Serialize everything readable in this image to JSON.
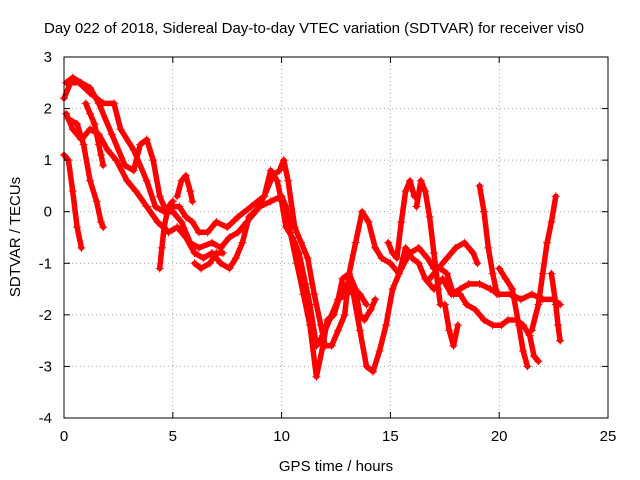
{
  "chart_data": {
    "type": "scatter",
    "title": "Day 022 of 2018, Sidereal Day-to-day VTEC variation (SDTVAR) for receiver vis0",
    "xlabel": "GPS time / hours",
    "ylabel": "SDTVAR / TECUs",
    "xlim": [
      0,
      25
    ],
    "ylim": [
      -4,
      3
    ],
    "xticks": [
      "0",
      "5",
      "10",
      "15",
      "20",
      "25"
    ],
    "yticks": [
      "3",
      "2",
      "1",
      "0",
      "-1",
      "-2",
      "-3",
      "-4"
    ],
    "grid": true,
    "marker": "+",
    "color": "#ff0000",
    "series": [
      {
        "name": "arc-1",
        "points": [
          [
            0.0,
            2.2
          ],
          [
            0.3,
            2.5
          ],
          [
            0.7,
            2.5
          ],
          [
            1.2,
            2.3
          ],
          [
            1.8,
            2.1
          ],
          [
            2.3,
            2.1
          ],
          [
            2.6,
            1.6
          ],
          [
            3.2,
            1.2
          ],
          [
            3.8,
            0.6
          ],
          [
            4.2,
            0.1
          ],
          [
            4.6,
            0.0
          ],
          [
            5.0,
            0.0
          ],
          [
            5.4,
            -0.2
          ],
          [
            5.8,
            -0.6
          ],
          [
            6.2,
            -0.7
          ],
          [
            6.8,
            -0.6
          ],
          [
            7.2,
            -0.7
          ],
          [
            7.6,
            -0.5
          ],
          [
            8.0,
            -0.4
          ],
          [
            8.4,
            -0.2
          ],
          [
            8.8,
            0.0
          ],
          [
            9.2,
            0.3
          ],
          [
            9.5,
            0.8
          ],
          [
            9.8,
            0.6
          ],
          [
            10.0,
            0.2
          ],
          [
            10.2,
            -0.3
          ],
          [
            10.5,
            -0.5
          ],
          [
            10.8,
            -0.8
          ],
          [
            11.1,
            -1.4
          ],
          [
            11.3,
            -1.8
          ],
          [
            11.6,
            -2.6
          ],
          [
            11.9,
            -2.4
          ],
          [
            12.2,
            -2.1
          ],
          [
            12.6,
            -1.7
          ],
          [
            13.0,
            -1.6
          ],
          [
            13.3,
            -1.5
          ],
          [
            13.6,
            -1.6
          ],
          [
            13.9,
            -1.8
          ]
        ]
      },
      {
        "name": "arc-2",
        "points": [
          [
            0.1,
            2.5
          ],
          [
            0.4,
            2.6
          ],
          [
            0.8,
            2.5
          ],
          [
            1.2,
            2.4
          ],
          [
            1.6,
            2.1
          ],
          [
            2.2,
            1.5
          ],
          [
            2.8,
            0.9
          ],
          [
            3.2,
            0.8
          ],
          [
            3.5,
            1.3
          ],
          [
            3.8,
            1.4
          ],
          [
            4.1,
            1.0
          ],
          [
            4.4,
            0.3
          ],
          [
            4.7,
            0.0
          ],
          [
            5.0,
            0.1
          ],
          [
            5.3,
            0.1
          ],
          [
            5.6,
            -0.1
          ],
          [
            5.9,
            -0.2
          ],
          [
            6.2,
            -0.4
          ],
          [
            6.6,
            -0.4
          ],
          [
            7.0,
            -0.2
          ],
          [
            7.5,
            -0.3
          ],
          [
            8.0,
            -0.1
          ],
          [
            8.6,
            0.1
          ],
          [
            9.2,
            0.3
          ],
          [
            9.6,
            0.7
          ],
          [
            9.9,
            0.8
          ],
          [
            10.1,
            1.0
          ],
          [
            10.3,
            0.6
          ],
          [
            10.6,
            -0.3
          ],
          [
            10.9,
            -0.6
          ],
          [
            11.2,
            -0.9
          ],
          [
            11.5,
            -1.6
          ],
          [
            11.8,
            -2.2
          ],
          [
            12.0,
            -2.6
          ],
          [
            12.3,
            -2.6
          ],
          [
            12.6,
            -2.3
          ],
          [
            12.9,
            -2.0
          ],
          [
            13.1,
            -1.2
          ],
          [
            13.4,
            -0.6
          ],
          [
            13.7,
            0.0
          ],
          [
            14.0,
            -0.2
          ],
          [
            14.3,
            -0.7
          ],
          [
            14.6,
            -0.9
          ],
          [
            15.0,
            -1.0
          ],
          [
            15.4,
            -1.2
          ],
          [
            15.7,
            -0.7
          ],
          [
            16.0,
            -0.9
          ],
          [
            16.3,
            -1.0
          ],
          [
            16.6,
            -1.3
          ],
          [
            17.0,
            -1.5
          ],
          [
            17.4,
            -1.3
          ],
          [
            17.8,
            -1.6
          ],
          [
            18.2,
            -1.5
          ],
          [
            18.6,
            -1.4
          ],
          [
            19.1,
            -1.4
          ],
          [
            19.6,
            -1.5
          ],
          [
            20.0,
            -1.6
          ],
          [
            20.5,
            -1.6
          ],
          [
            21.0,
            -1.7
          ],
          [
            21.5,
            -1.6
          ],
          [
            22.0,
            -1.7
          ],
          [
            22.5,
            -1.7
          ],
          [
            22.8,
            -1.8
          ]
        ]
      },
      {
        "name": "arc-3",
        "points": [
          [
            0.1,
            1.9
          ],
          [
            0.4,
            1.6
          ],
          [
            0.8,
            1.4
          ],
          [
            1.2,
            1.6
          ],
          [
            1.6,
            1.5
          ],
          [
            2.0,
            1.2
          ],
          [
            2.4,
            1.0
          ],
          [
            2.9,
            0.6
          ],
          [
            3.3,
            0.4
          ],
          [
            3.8,
            0.1
          ],
          [
            4.3,
            -0.2
          ],
          [
            4.8,
            -0.4
          ],
          [
            5.2,
            -0.3
          ],
          [
            5.6,
            -0.5
          ],
          [
            6.0,
            -0.8
          ],
          [
            6.4,
            -0.9
          ],
          [
            6.8,
            -0.8
          ],
          [
            7.2,
            -1.0
          ],
          [
            7.6,
            -1.1
          ],
          [
            7.9,
            -0.9
          ],
          [
            8.2,
            -0.6
          ],
          [
            8.5,
            -0.1
          ],
          [
            9.0,
            0.1
          ],
          [
            9.5,
            0.2
          ],
          [
            10.0,
            0.3
          ],
          [
            10.2,
            0.1
          ],
          [
            10.4,
            -0.4
          ],
          [
            10.7,
            -1.0
          ],
          [
            11.0,
            -1.6
          ],
          [
            11.3,
            -2.2
          ],
          [
            11.6,
            -3.2
          ],
          [
            11.9,
            -2.6
          ],
          [
            12.1,
            -2.1
          ],
          [
            12.4,
            -2.0
          ],
          [
            12.7,
            -1.6
          ],
          [
            13.0,
            -1.4
          ],
          [
            13.3,
            -1.6
          ],
          [
            13.6,
            -2.3
          ],
          [
            13.9,
            -3.0
          ],
          [
            14.2,
            -3.1
          ],
          [
            14.5,
            -2.7
          ],
          [
            14.8,
            -2.2
          ],
          [
            15.1,
            -1.5
          ],
          [
            15.5,
            -1.1
          ],
          [
            15.9,
            -0.8
          ],
          [
            16.3,
            -0.7
          ],
          [
            16.7,
            -0.9
          ],
          [
            17.0,
            -1.1
          ],
          [
            17.3,
            -1.1
          ],
          [
            17.6,
            -1.2
          ],
          [
            17.9,
            -1.6
          ],
          [
            18.2,
            -1.6
          ],
          [
            18.5,
            -1.8
          ],
          [
            18.9,
            -1.9
          ],
          [
            19.3,
            -2.1
          ],
          [
            19.7,
            -2.2
          ],
          [
            20.1,
            -2.2
          ],
          [
            20.4,
            -2.1
          ],
          [
            20.8,
            -2.1
          ],
          [
            21.1,
            -2.2
          ],
          [
            21.4,
            -2.4
          ],
          [
            21.6,
            -2.8
          ],
          [
            21.8,
            -2.9
          ]
        ]
      },
      {
        "name": "arc-4",
        "points": [
          [
            0.0,
            1.1
          ],
          [
            0.2,
            1.0
          ],
          [
            0.4,
            0.4
          ],
          [
            0.6,
            -0.3
          ],
          [
            0.8,
            -0.7
          ]
        ]
      },
      {
        "name": "arc-5",
        "points": [
          [
            0.2,
            1.8
          ],
          [
            0.6,
            1.7
          ],
          [
            0.9,
            1.3
          ],
          [
            1.2,
            0.6
          ],
          [
            1.5,
            0.2
          ],
          [
            1.7,
            -0.2
          ],
          [
            1.8,
            -0.3
          ]
        ]
      },
      {
        "name": "arc-6",
        "points": [
          [
            1.0,
            2.1
          ],
          [
            1.2,
            1.9
          ],
          [
            1.4,
            1.7
          ],
          [
            1.6,
            1.3
          ],
          [
            1.7,
            1.1
          ],
          [
            1.8,
            0.9
          ]
        ]
      },
      {
        "name": "arc-7",
        "points": [
          [
            4.4,
            -1.1
          ],
          [
            4.5,
            -0.7
          ],
          [
            4.6,
            -0.3
          ],
          [
            4.8,
            0.1
          ],
          [
            5.0,
            0.2
          ]
        ]
      },
      {
        "name": "arc-8",
        "points": [
          [
            5.2,
            0.3
          ],
          [
            5.4,
            0.6
          ],
          [
            5.6,
            0.7
          ],
          [
            5.8,
            0.4
          ],
          [
            5.9,
            0.2
          ]
        ]
      },
      {
        "name": "arc-9",
        "points": [
          [
            6.0,
            -1.0
          ],
          [
            6.3,
            -1.1
          ],
          [
            6.7,
            -1.0
          ],
          [
            7.0,
            -0.8
          ],
          [
            7.3,
            -0.8
          ]
        ]
      },
      {
        "name": "arc-10",
        "points": [
          [
            12.6,
            -1.7
          ],
          [
            12.8,
            -1.3
          ],
          [
            13.1,
            -1.2
          ],
          [
            13.4,
            -1.5
          ],
          [
            13.6,
            -2.0
          ],
          [
            13.8,
            -2.1
          ],
          [
            14.1,
            -1.9
          ],
          [
            14.3,
            -1.7
          ]
        ]
      },
      {
        "name": "arc-11",
        "points": [
          [
            14.9,
            -0.6
          ],
          [
            15.1,
            -0.8
          ],
          [
            15.3,
            -0.9
          ],
          [
            15.5,
            -0.2
          ],
          [
            15.7,
            0.4
          ],
          [
            15.9,
            0.6
          ],
          [
            16.1,
            0.3
          ]
        ]
      },
      {
        "name": "arc-12",
        "points": [
          [
            16.2,
            0.1
          ],
          [
            16.4,
            0.6
          ],
          [
            16.6,
            0.4
          ],
          [
            16.8,
            -0.1
          ],
          [
            17.0,
            -0.8
          ],
          [
            17.2,
            -1.5
          ],
          [
            17.3,
            -1.8
          ]
        ]
      },
      {
        "name": "arc-13",
        "points": [
          [
            17.5,
            -1.8
          ],
          [
            17.7,
            -2.3
          ],
          [
            17.9,
            -2.6
          ],
          [
            18.1,
            -2.2
          ]
        ]
      },
      {
        "name": "arc-14",
        "points": [
          [
            16.8,
            -1.3
          ],
          [
            17.2,
            -1.1
          ],
          [
            17.6,
            -0.9
          ],
          [
            18.0,
            -0.7
          ],
          [
            18.4,
            -0.6
          ],
          [
            18.8,
            -0.8
          ],
          [
            19.0,
            -1.0
          ]
        ]
      },
      {
        "name": "arc-15",
        "points": [
          [
            19.1,
            0.5
          ],
          [
            19.3,
            0.0
          ],
          [
            19.5,
            -0.7
          ],
          [
            19.7,
            -1.2
          ],
          [
            19.9,
            -1.6
          ]
        ]
      },
      {
        "name": "arc-16",
        "points": [
          [
            20.0,
            -1.1
          ],
          [
            20.3,
            -1.3
          ],
          [
            20.6,
            -1.5
          ],
          [
            20.9,
            -2.2
          ],
          [
            21.1,
            -2.7
          ],
          [
            21.3,
            -3.0
          ]
        ]
      },
      {
        "name": "arc-17",
        "points": [
          [
            21.5,
            -2.3
          ],
          [
            21.8,
            -1.8
          ],
          [
            22.0,
            -1.2
          ],
          [
            22.2,
            -0.6
          ],
          [
            22.4,
            -0.2
          ],
          [
            22.6,
            0.3
          ]
        ]
      },
      {
        "name": "arc-18",
        "points": [
          [
            22.4,
            -1.2
          ],
          [
            22.6,
            -1.8
          ],
          [
            22.7,
            -2.2
          ],
          [
            22.8,
            -2.5
          ]
        ]
      }
    ]
  }
}
